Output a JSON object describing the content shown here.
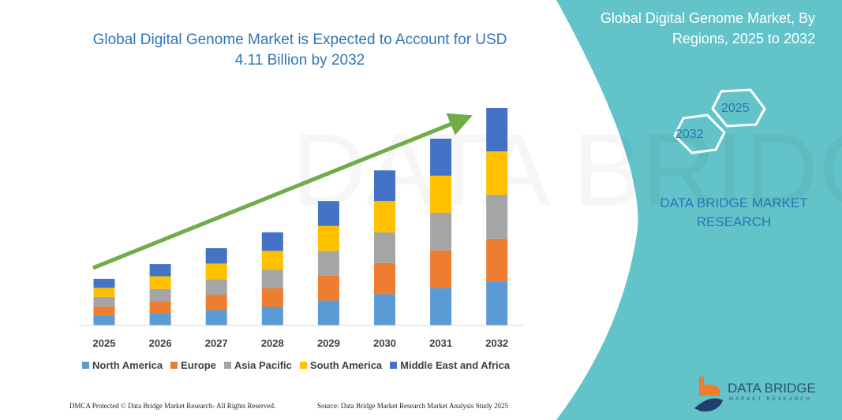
{
  "header": {
    "title": "Global Digital Genome Market is Expected to Account for USD 4.11 Billion by 2032"
  },
  "side_panel": {
    "title": "Global Digital Genome Market, By Regions, 2025 to 2032",
    "hex_start": "2025",
    "hex_end": "2032",
    "brand": "DATA BRIDGE MARKET RESEARCH",
    "panel_color": "#62c3c9"
  },
  "logo": {
    "name": "DATA BRIDGE",
    "sub": "MARKET RESEARCH"
  },
  "footer": {
    "left": "DMCA Protected © Data Bridge Market Research- All Rights Reserved.",
    "right": "Source: Data Bridge Market Research Market Analysis Study 2025"
  },
  "chart_data": {
    "type": "bar",
    "stacked": true,
    "title": "Global Digital Genome Market is Expected to Account for USD 4.11 Billion by 2032",
    "xlabel": "",
    "ylabel": "",
    "categories": [
      "2025",
      "2026",
      "2027",
      "2028",
      "2029",
      "2030",
      "2031",
      "2032"
    ],
    "series": [
      {
        "name": "North America",
        "color": "#5b9bd5",
        "values": [
          0.18,
          0.23,
          0.29,
          0.35,
          0.47,
          0.59,
          0.71,
          0.82
        ]
      },
      {
        "name": "Europe",
        "color": "#ed7d31",
        "values": [
          0.18,
          0.23,
          0.29,
          0.35,
          0.47,
          0.59,
          0.71,
          0.82
        ]
      },
      {
        "name": "Asia Pacific",
        "color": "#a5a5a5",
        "values": [
          0.18,
          0.23,
          0.29,
          0.35,
          0.47,
          0.58,
          0.71,
          0.83
        ]
      },
      {
        "name": "South America",
        "color": "#ffc000",
        "values": [
          0.17,
          0.24,
          0.3,
          0.36,
          0.47,
          0.59,
          0.7,
          0.82
        ]
      },
      {
        "name": "Middle East and Africa",
        "color": "#4472c4",
        "values": [
          0.17,
          0.23,
          0.29,
          0.35,
          0.47,
          0.58,
          0.7,
          0.82
        ]
      }
    ],
    "ylim": [
      0,
      4.11
    ],
    "grid": false,
    "legend_position": "bottom",
    "trend_arrow_color": "#70ad47"
  }
}
